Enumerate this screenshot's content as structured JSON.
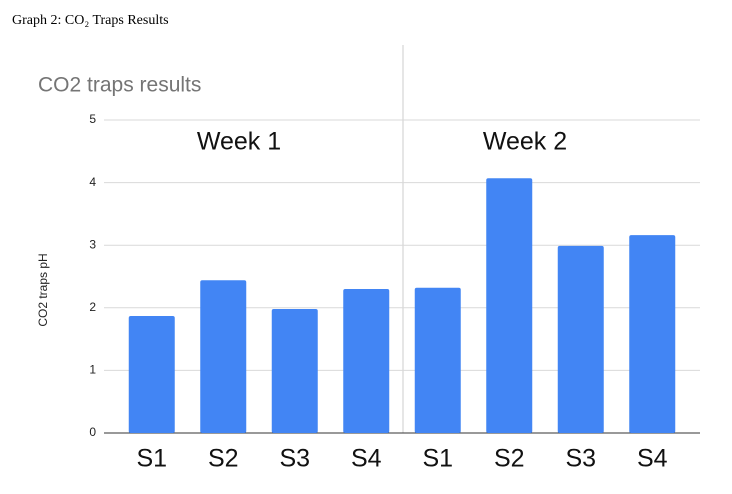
{
  "caption": "Graph 2: CO₂ Traps Results",
  "chart_data": {
    "type": "bar",
    "title": "CO2 traps results",
    "y_label": "CO2 traps pH",
    "categories": [
      "S1",
      "S2",
      "S3",
      "S4",
      "S1",
      "S2",
      "S3",
      "S4"
    ],
    "values": [
      1.87,
      2.44,
      1.98,
      2.3,
      2.32,
      4.07,
      2.99,
      3.16
    ],
    "color": "#4285f4",
    "annotations": [
      "Week 1",
      "Week 2"
    ],
    "ylim": [
      0,
      5
    ],
    "yticks": [
      0,
      1,
      2,
      3,
      4,
      5
    ],
    "grid": true
  }
}
